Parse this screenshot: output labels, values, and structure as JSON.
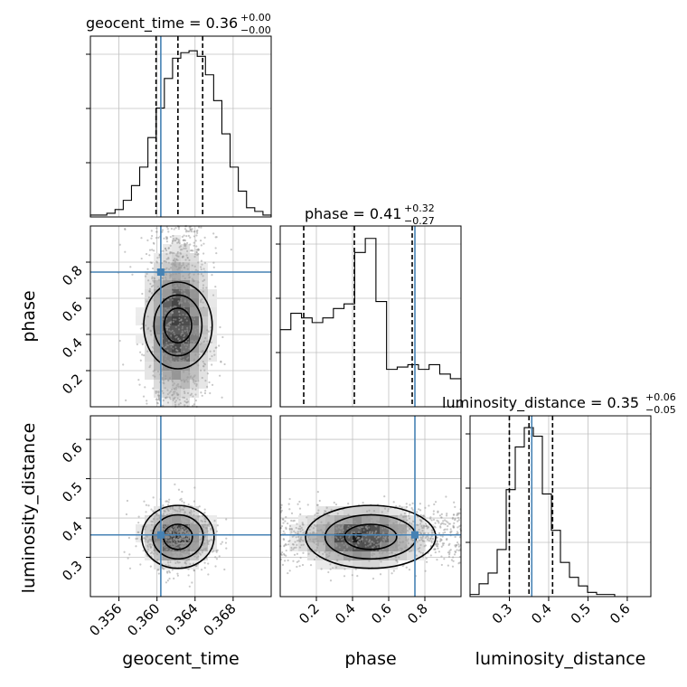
{
  "chart_data": {
    "type": "corner",
    "parameters": [
      "geocent_time",
      "phase",
      "luminosity_distance"
    ],
    "truths": {
      "geocent_time": 0.3604,
      "phase": 0.745,
      "luminosity_distance": 0.357
    },
    "colors": {
      "truth": "#4682b4",
      "contour": "#000000",
      "grid": "#c0c0c0",
      "quantile": "#000000"
    },
    "titles": {
      "geocent_time": {
        "prefix": "geocent_time = 0.36",
        "up": "+0.00",
        "down": "−0.00"
      },
      "phase": {
        "prefix": "phase = 0.41",
        "up": "+0.32",
        "down": "−0.27"
      },
      "luminosity_distance": {
        "prefix": "luminosity_distance = 0.35",
        "up": "+0.06",
        "down": "−0.05"
      }
    },
    "axes": {
      "geocent_time": {
        "range": [
          0.353,
          0.372
        ],
        "ticks": [
          0.356,
          0.36,
          0.364,
          0.368
        ],
        "tick_labels": [
          "0.356",
          "0.360",
          "0.364",
          "0.368"
        ],
        "label": "geocent_time"
      },
      "phase": {
        "range": [
          0.0,
          1.0
        ],
        "ticks": [
          0.2,
          0.4,
          0.6,
          0.8
        ],
        "tick_labels": [
          "0.2",
          "0.4",
          "0.6",
          "0.8"
        ],
        "label": "phase"
      },
      "luminosity_distance": {
        "range": [
          0.2,
          0.66
        ],
        "ticks": [
          0.3,
          0.4,
          0.5,
          0.6
        ],
        "tick_labels": [
          "0.3",
          "0.4",
          "0.5",
          "0.6"
        ],
        "label": "luminosity_distance"
      }
    },
    "histograms": {
      "geocent_time": {
        "quantiles": [
          0.3599,
          0.3622,
          0.3648
        ],
        "counts": [
          1,
          1,
          2,
          4,
          9,
          17,
          27,
          43,
          59,
          75,
          86,
          89,
          90,
          87,
          77,
          63,
          45,
          27,
          14,
          5,
          3,
          1
        ],
        "max": 95
      },
      "phase": {
        "quantiles": [
          0.13,
          0.41,
          0.73
        ],
        "counts": [
          33,
          40,
          38,
          36,
          38,
          42,
          44,
          66,
          72,
          45,
          16,
          17,
          18,
          16,
          18,
          14,
          12
        ],
        "max": 75
      },
      "luminosity_distance": {
        "quantiles": [
          0.3,
          0.35,
          0.41
        ],
        "counts": [
          1,
          6,
          11,
          22,
          50,
          70,
          79,
          75,
          48,
          31,
          16,
          9,
          5,
          2,
          1,
          1,
          0,
          0,
          0,
          0
        ],
        "max": 82
      }
    },
    "scatter": {
      "phase_vs_geocent_time": {
        "center": [
          0.3622,
          0.45
        ],
        "spread": [
          0.0018,
          0.22
        ],
        "n_points": 900
      },
      "luminosity_distance_vs_geocent_time": {
        "center": [
          0.3622,
          0.352
        ],
        "spread": [
          0.0019,
          0.04
        ],
        "n_points": 900
      },
      "luminosity_distance_vs_phase": {
        "center": [
          0.5,
          0.352
        ],
        "spread": [
          0.28,
          0.04
        ],
        "n_points": 900
      }
    },
    "grid": true
  }
}
